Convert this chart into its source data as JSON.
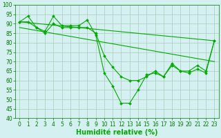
{
  "background_color": "#d4f0f0",
  "grid_color": "#aaccbb",
  "line_color": "#00aa00",
  "xlabel": "Humidité relative (%)",
  "xlabel_fontsize": 7,
  "tick_fontsize": 5.5,
  "ylim": [
    40,
    100
  ],
  "xlim": [
    -0.5,
    23.5
  ],
  "yticks": [
    40,
    45,
    50,
    55,
    60,
    65,
    70,
    75,
    80,
    85,
    90,
    95,
    100
  ],
  "xticks": [
    0,
    1,
    2,
    3,
    4,
    5,
    6,
    7,
    8,
    9,
    10,
    11,
    12,
    13,
    14,
    15,
    16,
    17,
    18,
    19,
    20,
    21,
    22,
    23
  ],
  "series": [
    {
      "x": [
        0,
        1,
        2,
        3,
        4,
        5,
        6,
        7,
        8,
        9,
        10,
        11,
        12,
        13,
        14,
        15,
        16,
        17,
        18,
        19,
        20,
        21,
        22,
        23
      ],
      "y": [
        91,
        94,
        88,
        86,
        94,
        89,
        89,
        89,
        92,
        84,
        64,
        57,
        48,
        48,
        55,
        63,
        64,
        62,
        69,
        65,
        64,
        66,
        64,
        81
      ],
      "has_markers": true
    },
    {
      "x": [
        0,
        1,
        2,
        3,
        4,
        5,
        6,
        7,
        8,
        9,
        10,
        11,
        12,
        13,
        14,
        15,
        16,
        17,
        18,
        19,
        20,
        21,
        22,
        23
      ],
      "y": [
        91,
        91,
        88,
        85,
        90,
        88,
        88,
        88,
        88,
        85,
        73,
        67,
        62,
        60,
        60,
        62,
        65,
        62,
        68,
        65,
        65,
        68,
        65,
        81
      ],
      "has_markers": true
    },
    {
      "x": [
        0,
        23
      ],
      "y": [
        91,
        81
      ],
      "has_markers": false
    },
    {
      "x": [
        0,
        23
      ],
      "y": [
        88,
        70
      ],
      "has_markers": false
    }
  ]
}
